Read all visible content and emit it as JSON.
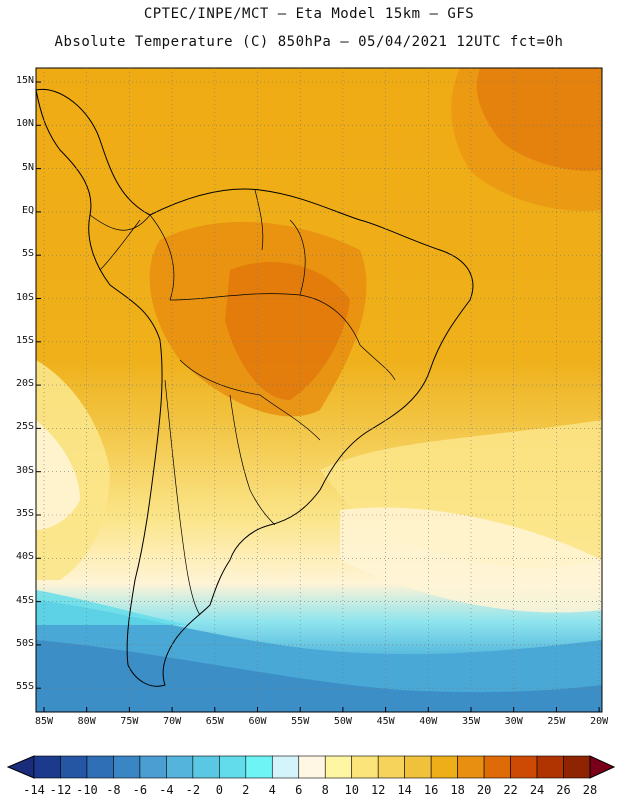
{
  "header": {
    "line1": "CPTEC/INPE/MCT –  Eta Model 15km – GFS",
    "line2": "Absolute Temperature (C) 850hPa – 05/04/2021 12UTC fct=0h"
  },
  "lat_labels": [
    "15N",
    "10N",
    "5N",
    "EQ",
    "5S",
    "10S",
    "15S",
    "20S",
    "25S",
    "30S",
    "35S",
    "40S",
    "45S",
    "50S",
    "55S"
  ],
  "lon_labels": [
    "85W",
    "80W",
    "75W",
    "70W",
    "65W",
    "60W",
    "55W",
    "50W",
    "45W",
    "40W",
    "35W",
    "30W",
    "25W",
    "20W"
  ],
  "colorbar": {
    "labels": [
      "-14",
      "-12",
      "-10",
      "-8",
      "-6",
      "-4",
      "-2",
      "0",
      "2",
      "4",
      "6",
      "8",
      "10",
      "12",
      "14",
      "16",
      "18",
      "20",
      "22",
      "24",
      "26",
      "28"
    ],
    "colors": [
      "#1b3a8c",
      "#2456a3",
      "#2f6fb6",
      "#3a86c4",
      "#4a9ed2",
      "#55b4dc",
      "#5ac8e2",
      "#62dcea",
      "#6ff4f6",
      "#d3f4fb",
      "#fff6e3",
      "#fff6a3",
      "#fbe47a",
      "#f6d45c",
      "#f0c13a",
      "#eeae1a",
      "#e88e10",
      "#df6a08",
      "#cd4a04",
      "#b03402",
      "#8e2402"
    ],
    "under_color": "#1a2c7c",
    "over_color": "#7a001a"
  },
  "icons": {
    "coastline": "coastline-outline",
    "borders": "country-border-lines"
  }
}
